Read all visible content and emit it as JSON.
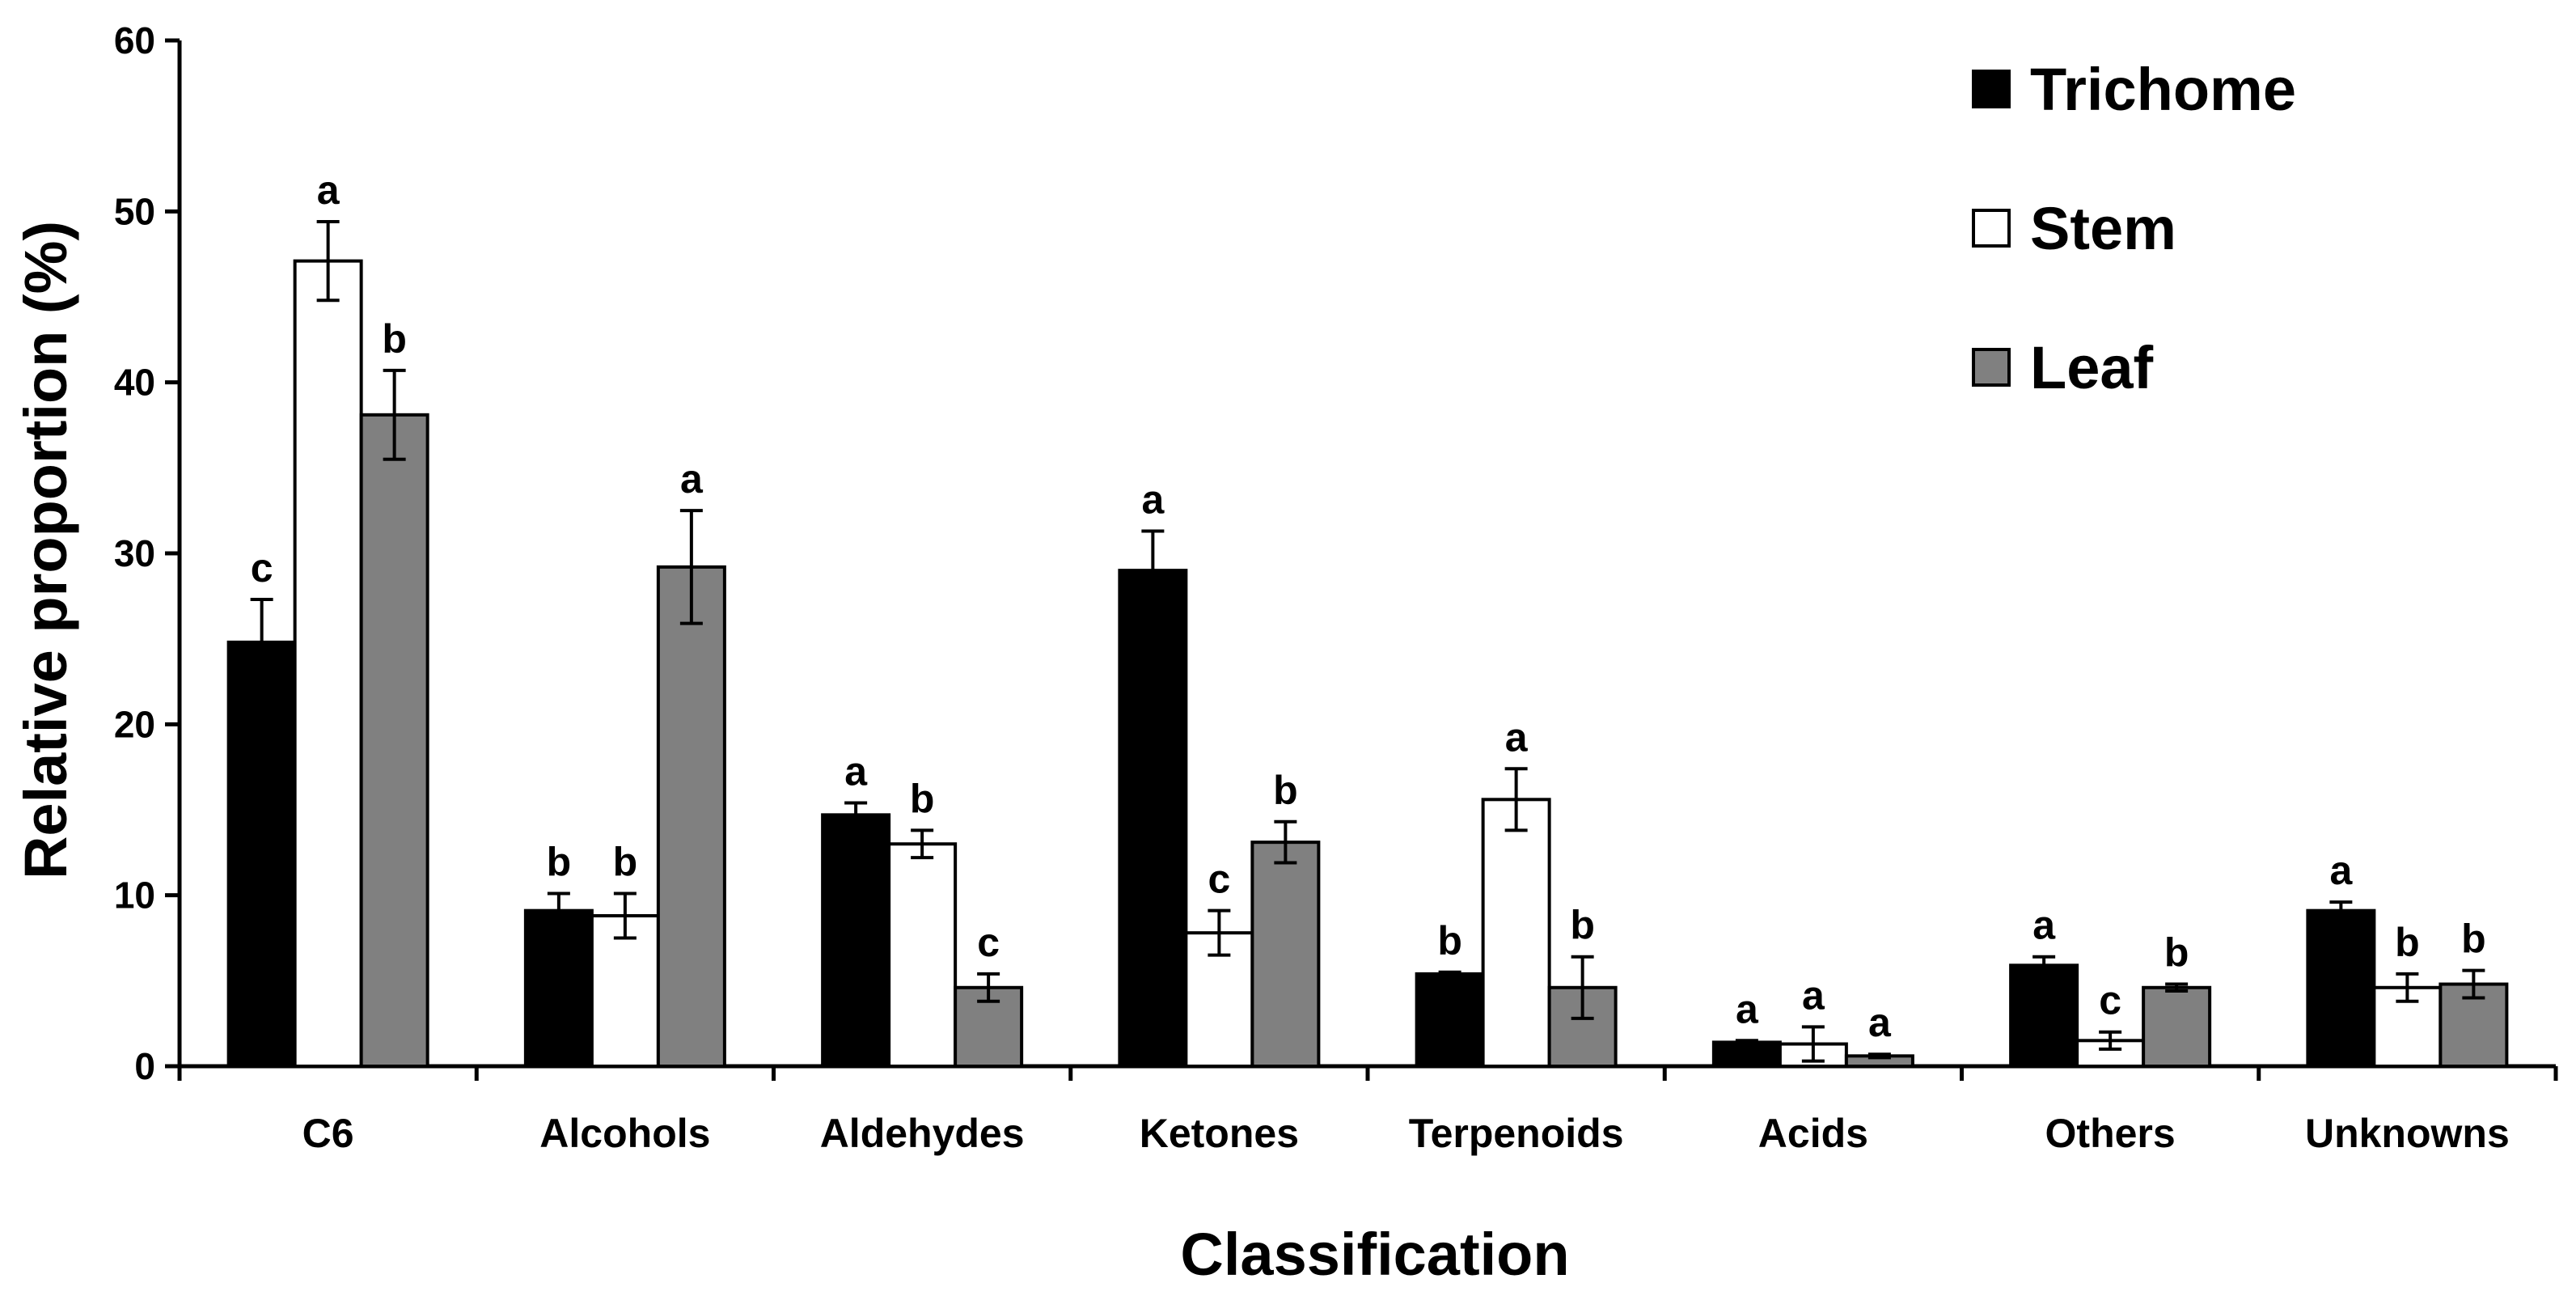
{
  "chart_data": {
    "type": "bar",
    "title": "",
    "xlabel": "Classification",
    "ylabel": "Relative proportion (%)",
    "ylim": [
      0,
      60
    ],
    "yticks": [
      "0",
      "10",
      "20",
      "30",
      "40",
      "50",
      "60"
    ],
    "categories": [
      "C6",
      "Alcohols",
      "Aldehydes",
      "Ketones",
      "Terpenoids",
      "Acids",
      "Others",
      "Unknowns"
    ],
    "legend_position": "top-right",
    "series": [
      {
        "name": "Trichome",
        "color": "#000000",
        "values": [
          24.8,
          9.1,
          14.7,
          29.0,
          5.4,
          1.4,
          5.9,
          9.1
        ],
        "errors": [
          2.5,
          1.0,
          0.7,
          2.3,
          0.1,
          0.1,
          0.5,
          0.5
        ],
        "letters": [
          "c",
          "b",
          "a",
          "a",
          "b",
          "a",
          "a",
          "a"
        ]
      },
      {
        "name": "Stem",
        "color": "#ffffff",
        "values": [
          47.1,
          8.8,
          13.0,
          7.8,
          15.6,
          1.3,
          1.5,
          4.6
        ],
        "errors": [
          2.3,
          1.3,
          0.8,
          1.3,
          1.8,
          1.0,
          0.5,
          0.8
        ],
        "letters": [
          "a",
          "b",
          "b",
          "c",
          "a",
          "a",
          "c",
          "b"
        ]
      },
      {
        "name": "Leaf",
        "color": "#808080",
        "values": [
          38.1,
          29.2,
          4.6,
          13.1,
          4.6,
          0.6,
          4.6,
          4.8
        ],
        "errors": [
          2.6,
          3.3,
          0.8,
          1.2,
          1.8,
          0.1,
          0.2,
          0.8
        ],
        "letters": [
          "b",
          "a",
          "c",
          "b",
          "b",
          "a",
          "b",
          "b"
        ]
      }
    ]
  }
}
